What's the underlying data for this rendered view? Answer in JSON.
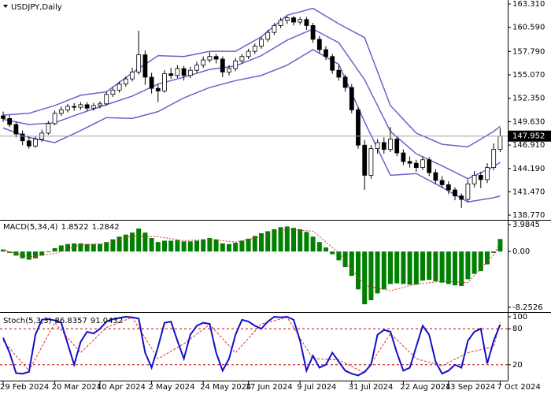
{
  "chart_data": [
    {
      "type": "candlestick",
      "title": "USDJPY,Daily",
      "categories": [
        "29 Feb 2024",
        null,
        null,
        null,
        null,
        null,
        null,
        null,
        "20 Mar 2024",
        null,
        null,
        null,
        null,
        null,
        null,
        "10 Apr 2024",
        null,
        null,
        null,
        null,
        null,
        null,
        null,
        "2 May 2024",
        null,
        null,
        null,
        null,
        null,
        null,
        null,
        "24 May 2024",
        null,
        null,
        null,
        null,
        null,
        null,
        "17 Jun 2024",
        null,
        null,
        null,
        null,
        null,
        null,
        null,
        "9 Jul 2024",
        null,
        null,
        null,
        null,
        null,
        null,
        null,
        "31 Jul 2024",
        null,
        null,
        null,
        null,
        null,
        null,
        null,
        "22 Aug 2024",
        null,
        null,
        null,
        null,
        null,
        null,
        "13 Sep 2024",
        null,
        null,
        null,
        null,
        null,
        null,
        null,
        "7 Oct 2024"
      ],
      "ohlc": [
        [
          150.3,
          150.8,
          149.6,
          150.0
        ],
        [
          150.0,
          150.4,
          149.0,
          149.3
        ],
        [
          149.3,
          149.6,
          147.8,
          148.2
        ],
        [
          148.2,
          148.6,
          146.9,
          147.4
        ],
        [
          147.4,
          147.9,
          146.5,
          146.8
        ],
        [
          146.8,
          147.9,
          146.6,
          147.6
        ],
        [
          147.6,
          148.7,
          147.3,
          148.3
        ],
        [
          148.3,
          149.7,
          148.1,
          149.4
        ],
        [
          149.4,
          150.9,
          149.2,
          150.6
        ],
        [
          150.6,
          151.4,
          150.3,
          151.0
        ],
        [
          151.0,
          151.7,
          150.7,
          151.4
        ],
        [
          151.4,
          151.8,
          150.9,
          151.3
        ],
        [
          151.3,
          151.9,
          151.0,
          151.6
        ],
        [
          151.6,
          151.9,
          150.9,
          151.2
        ],
        [
          151.2,
          151.8,
          150.9,
          151.5
        ],
        [
          151.5,
          152.0,
          151.2,
          151.7
        ],
        [
          151.7,
          153.1,
          151.5,
          152.8
        ],
        [
          152.8,
          153.6,
          152.5,
          153.3
        ],
        [
          153.3,
          154.3,
          153.0,
          154.0
        ],
        [
          154.0,
          154.9,
          153.7,
          154.6
        ],
        [
          154.6,
          155.9,
          154.3,
          155.4
        ],
        [
          155.4,
          160.2,
          155.1,
          157.4
        ],
        [
          157.4,
          157.9,
          153.9,
          154.8
        ],
        [
          154.8,
          155.3,
          152.9,
          153.5
        ],
        [
          153.5,
          154.0,
          151.9,
          153.2
        ],
        [
          153.2,
          155.6,
          153.0,
          155.2
        ],
        [
          155.2,
          155.9,
          154.6,
          155.0
        ],
        [
          155.0,
          156.2,
          154.7,
          155.8
        ],
        [
          155.8,
          156.1,
          154.4,
          155.0
        ],
        [
          155.0,
          156.0,
          154.7,
          155.6
        ],
        [
          155.6,
          156.6,
          155.3,
          156.2
        ],
        [
          156.2,
          157.2,
          155.9,
          156.8
        ],
        [
          156.8,
          157.7,
          156.5,
          157.2
        ],
        [
          157.2,
          157.5,
          156.4,
          156.9
        ],
        [
          156.9,
          157.2,
          154.8,
          155.4
        ],
        [
          155.4,
          156.2,
          155.0,
          155.8
        ],
        [
          155.8,
          157.0,
          155.5,
          156.7
        ],
        [
          156.7,
          157.5,
          156.4,
          157.2
        ],
        [
          157.2,
          158.1,
          156.9,
          157.8
        ],
        [
          157.8,
          158.7,
          157.5,
          158.4
        ],
        [
          158.4,
          159.5,
          158.1,
          159.2
        ],
        [
          159.2,
          160.3,
          158.9,
          160.0
        ],
        [
          160.0,
          161.1,
          159.7,
          160.8
        ],
        [
          160.8,
          161.7,
          160.5,
          161.4
        ],
        [
          161.4,
          161.9,
          161.0,
          161.7
        ],
        [
          161.7,
          161.9,
          160.8,
          161.2
        ],
        [
          161.2,
          161.8,
          160.9,
          161.5
        ],
        [
          161.5,
          161.8,
          160.3,
          160.8
        ],
        [
          160.8,
          161.1,
          158.8,
          159.2
        ],
        [
          159.2,
          159.6,
          157.6,
          158.0
        ],
        [
          158.0,
          158.4,
          156.8,
          157.2
        ],
        [
          157.2,
          157.5,
          155.2,
          155.6
        ],
        [
          155.6,
          156.2,
          154.4,
          154.8
        ],
        [
          154.8,
          155.1,
          153.1,
          153.6
        ],
        [
          153.6,
          154.0,
          150.6,
          151.0
        ],
        [
          151.0,
          151.3,
          146.5,
          146.9
        ],
        [
          146.9,
          147.5,
          141.7,
          143.4
        ],
        [
          143.4,
          146.9,
          143.0,
          146.5
        ],
        [
          146.5,
          147.6,
          145.9,
          147.2
        ],
        [
          147.2,
          147.8,
          145.9,
          146.4
        ],
        [
          146.4,
          149.0,
          146.1,
          147.6
        ],
        [
          147.6,
          147.9,
          145.6,
          146.0
        ],
        [
          146.0,
          146.4,
          144.6,
          145.0
        ],
        [
          145.0,
          145.6,
          144.3,
          144.8
        ],
        [
          144.8,
          145.2,
          143.8,
          144.3
        ],
        [
          144.3,
          145.6,
          144.0,
          145.2
        ],
        [
          145.2,
          145.5,
          143.3,
          143.7
        ],
        [
          143.7,
          144.1,
          142.4,
          142.8
        ],
        [
          142.8,
          143.3,
          141.9,
          142.3
        ],
        [
          142.3,
          142.7,
          141.2,
          141.7
        ],
        [
          141.7,
          142.0,
          140.5,
          141.0
        ],
        [
          141.0,
          141.3,
          139.6,
          140.6
        ],
        [
          140.6,
          142.9,
          140.3,
          142.4
        ],
        [
          142.4,
          143.9,
          142.0,
          143.4
        ],
        [
          143.4,
          143.8,
          141.9,
          142.9
        ],
        [
          142.9,
          144.8,
          142.5,
          144.3
        ],
        [
          144.3,
          147.1,
          144.0,
          146.4
        ],
        [
          146.4,
          148.9,
          146.1,
          147.952
        ]
      ],
      "bands_x": [
        0,
        4,
        8,
        12,
        16,
        20,
        24,
        28,
        32,
        36,
        40,
        44,
        48,
        52,
        56,
        60,
        64,
        68,
        72,
        76,
        77
      ],
      "bands": {
        "upper": [
          150.4,
          150.6,
          151.5,
          152.7,
          153.1,
          155.3,
          157.3,
          157.2,
          157.8,
          157.8,
          159.5,
          162.0,
          162.8,
          161.0,
          159.4,
          151.5,
          148.3,
          147.0,
          146.7,
          148.5,
          149.1
        ],
        "middle": [
          149.9,
          149.3,
          149.5,
          150.6,
          151.6,
          152.6,
          154.0,
          154.8,
          155.7,
          156.1,
          157.3,
          159.1,
          160.4,
          158.8,
          154.5,
          148.5,
          145.9,
          144.5,
          143.0,
          144.4,
          144.9
        ],
        "lower": [
          148.9,
          147.8,
          147.2,
          148.6,
          150.1,
          150.0,
          150.8,
          152.4,
          153.6,
          154.4,
          155.0,
          156.2,
          158.0,
          156.3,
          149.6,
          143.4,
          143.6,
          142.0,
          140.3,
          140.8,
          141.0
        ]
      },
      "band_color": "#6b62c9",
      "up_color": "#ffffff",
      "down_color": "#000000",
      "last_price": 147.952,
      "ylim": [
        138.77,
        163.31
      ],
      "yticks": [
        {
          "value": 163.31,
          "label": "163.310"
        },
        {
          "value": 160.59,
          "label": "160.590"
        },
        {
          "value": 157.79,
          "label": "157.790"
        },
        {
          "value": 155.07,
          "label": "155.070"
        },
        {
          "value": 152.35,
          "label": "152.350"
        },
        {
          "value": 149.63,
          "label": "149.630"
        },
        {
          "value": 146.91,
          "label": "146.910"
        },
        {
          "value": 144.19,
          "label": "144.190"
        },
        {
          "value": 141.47,
          "label": "141.470"
        },
        {
          "value": 138.77,
          "label": "138.770"
        }
      ]
    },
    {
      "type": "macd",
      "title": "MACD(5,34,4)",
      "values": [
        0.3,
        -0.2,
        -0.6,
        -1.0,
        -1.2,
        -1.0,
        -0.6,
        -0.1,
        0.5,
        0.9,
        1.1,
        1.2,
        1.2,
        1.1,
        1.1,
        1.1,
        1.4,
        1.8,
        2.2,
        2.5,
        2.8,
        3.4,
        2.8,
        2.0,
        1.4,
        1.6,
        1.6,
        1.7,
        1.5,
        1.5,
        1.6,
        1.8,
        2.0,
        1.8,
        1.2,
        1.1,
        1.3,
        1.6,
        1.9,
        2.3,
        2.7,
        3.0,
        3.3,
        3.6,
        3.7,
        3.5,
        3.3,
        2.9,
        2.2,
        1.4,
        0.6,
        -0.4,
        -1.3,
        -2.3,
        -3.6,
        -5.6,
        -7.8,
        -7.2,
        -6.2,
        -5.6,
        -4.8,
        -4.7,
        -4.8,
        -4.9,
        -4.9,
        -4.3,
        -4.2,
        -4.4,
        -4.6,
        -4.8,
        -5.0,
        -5.1,
        -4.1,
        -3.3,
        -2.9,
        -1.9,
        -0.2,
        1.8522
      ],
      "signal_x": [
        0,
        4,
        8,
        12,
        16,
        20,
        24,
        28,
        32,
        36,
        40,
        44,
        48,
        52,
        56,
        60,
        64,
        68,
        72,
        76,
        77
      ],
      "signal": [
        0.2,
        -0.8,
        -0.3,
        1.0,
        1.2,
        2.3,
        2.2,
        1.6,
        1.8,
        1.4,
        2.2,
        3.3,
        3.0,
        -0.2,
        -5.0,
        -5.8,
        -4.8,
        -4.4,
        -4.6,
        -0.5,
        1.2842
      ],
      "color": "#008000",
      "signal_color": "#e03030",
      "ylim": [
        -8.2526,
        3.9845
      ],
      "yticks": [
        3.9845,
        {
          "value": 0,
          "label": "0.00"
        },
        -8.2526
      ]
    },
    {
      "type": "stochastic",
      "title": "Stoch(5,3,3)",
      "values": [
        65,
        40,
        6,
        5,
        8,
        70,
        95,
        96,
        94,
        90,
        55,
        20,
        58,
        75,
        72,
        80,
        92,
        96,
        98,
        100,
        99,
        97,
        40,
        15,
        50,
        90,
        92,
        60,
        30,
        70,
        85,
        90,
        88,
        40,
        10,
        30,
        70,
        95,
        92,
        85,
        80,
        92,
        100,
        99,
        100,
        95,
        60,
        10,
        35,
        15,
        20,
        40,
        25,
        10,
        5,
        2,
        8,
        20,
        70,
        78,
        75,
        40,
        10,
        15,
        50,
        85,
        70,
        25,
        5,
        10,
        20,
        15,
        60,
        75,
        80,
        22,
        60,
        86.8357
      ],
      "signal_x": [
        0,
        4,
        8,
        12,
        16,
        20,
        24,
        28,
        32,
        36,
        40,
        44,
        48,
        52,
        56,
        60,
        64,
        68,
        72,
        76,
        77
      ],
      "signal": [
        60,
        10,
        90,
        40,
        82,
        99,
        30,
        55,
        87,
        40,
        88,
        99,
        30,
        28,
        6,
        72,
        30,
        18,
        40,
        50,
        91.0432
      ],
      "color": "#1010c8",
      "signal_color": "#e03030",
      "level_color": "#c00000",
      "ylim": [
        0,
        100
      ],
      "yticks": [
        100,
        80,
        20
      ]
    }
  ]
}
